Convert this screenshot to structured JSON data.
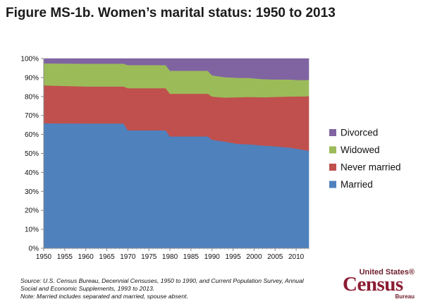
{
  "title": "Figure MS-1b. Women’s marital status: 1950 to 2013",
  "source": {
    "line1": "Source: U.S. Census Bureau, Decennial Censuses, 1950 to 1990, and Current Population Survey, Annual",
    "line2": "Social and Economic Supplements, 1993 to 2013.",
    "line3": "Note: Married includes separated and married, spouse absent."
  },
  "logo": {
    "top": "United States®",
    "main": "Census",
    "bottom": "Bureau"
  },
  "chart_data": {
    "type": "area",
    "stacked": true,
    "x": [
      1950,
      1960,
      1969,
      1970,
      1979,
      1980,
      1989,
      1990,
      1993,
      1996,
      1999,
      2002,
      2005,
      2008,
      2011,
      2012,
      2013
    ],
    "series": [
      {
        "name": "Married",
        "color": "#4f81bd",
        "values": [
          65.9,
          65.8,
          65.8,
          62.2,
          62.2,
          59.0,
          59.0,
          57.2,
          56.3,
          55.1,
          54.8,
          54.2,
          53.8,
          53.2,
          52.2,
          51.8,
          51.5
        ]
      },
      {
        "name": "Never married",
        "color": "#c0504d",
        "values": [
          20.0,
          19.5,
          19.5,
          22.2,
          22.2,
          22.5,
          22.5,
          22.8,
          23.2,
          24.5,
          25.0,
          25.4,
          26.0,
          26.8,
          27.9,
          28.3,
          28.7
        ]
      },
      {
        "name": "Widowed",
        "color": "#9bbb59",
        "values": [
          11.6,
          12.0,
          12.0,
          12.2,
          12.2,
          12.1,
          12.1,
          11.2,
          10.7,
          10.3,
          10.0,
          9.6,
          9.2,
          9.0,
          8.6,
          8.6,
          8.6
        ]
      },
      {
        "name": "Divorced",
        "color": "#8064a2",
        "values": [
          2.5,
          2.7,
          2.7,
          3.4,
          3.4,
          6.4,
          6.4,
          8.8,
          9.8,
          10.1,
          10.2,
          10.8,
          11.0,
          11.0,
          11.3,
          11.3,
          11.2
        ]
      }
    ],
    "x_ticks": [
      1950,
      1955,
      1960,
      1965,
      1970,
      1975,
      1980,
      1985,
      1990,
      1995,
      2000,
      2005,
      2010
    ],
    "y_ticks": [
      "0%",
      "10%",
      "20%",
      "30%",
      "40%",
      "50%",
      "60%",
      "70%",
      "80%",
      "90%",
      "100%"
    ],
    "xlim": [
      1950,
      2013
    ],
    "ylim": [
      0,
      100
    ],
    "legend_order": [
      "Divorced",
      "Widowed",
      "Never married",
      "Married"
    ],
    "legend_position": "right",
    "grid": false
  }
}
